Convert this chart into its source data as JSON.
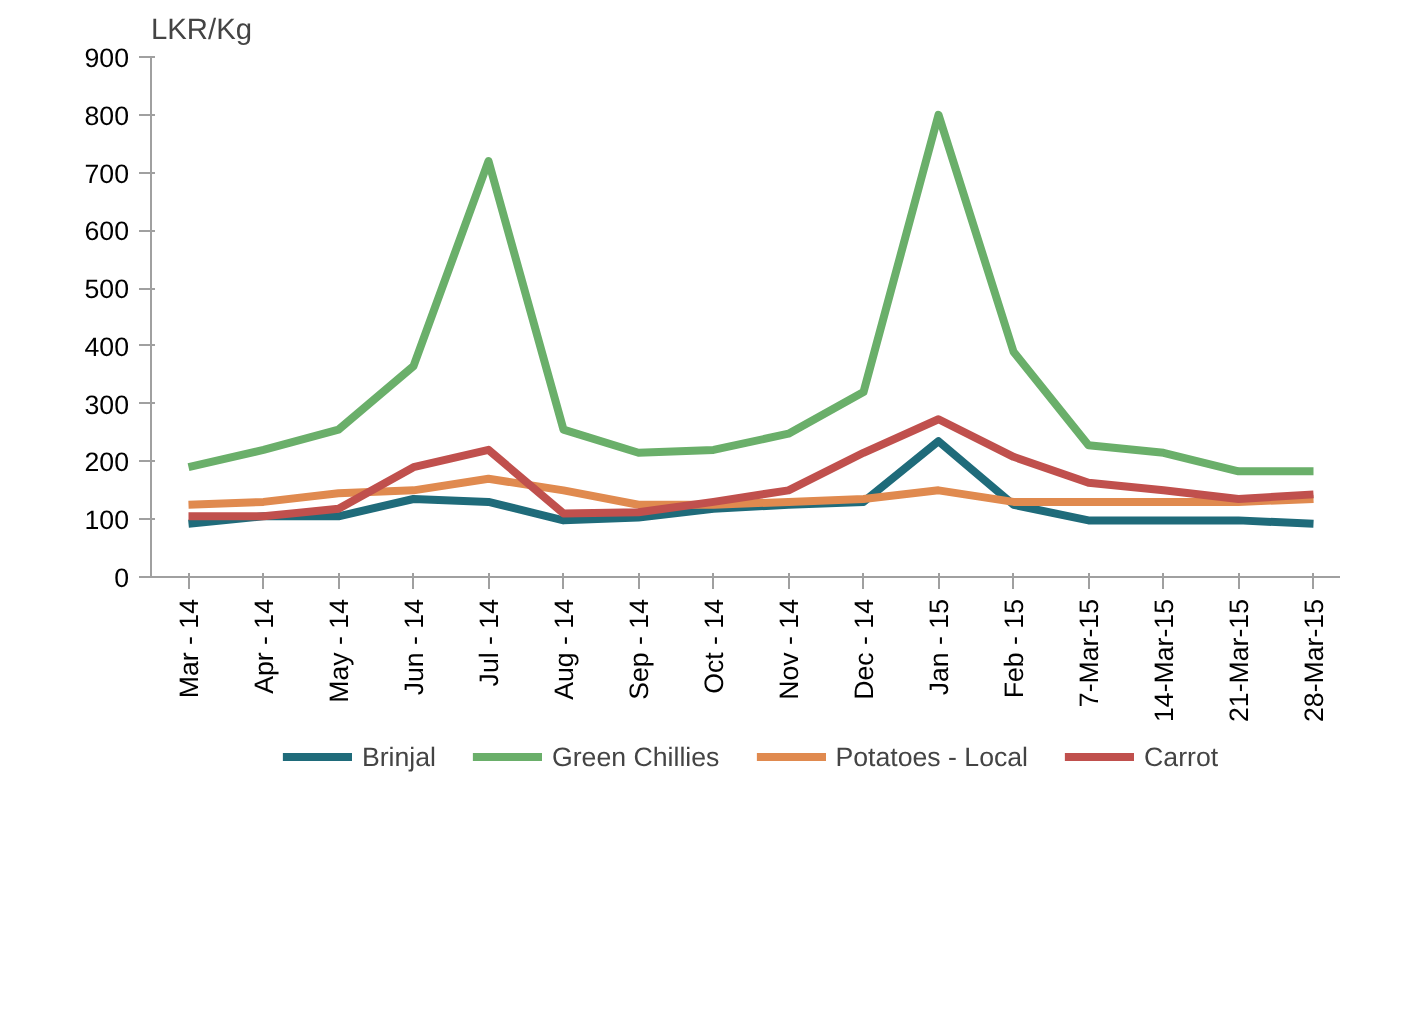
{
  "chart_data": {
    "type": "line",
    "ylabel": "LKR/Kg",
    "categories": [
      "Mar - 14",
      "Apr - 14",
      "May - 14",
      "Jun - 14",
      "Jul - 14",
      "Aug - 14",
      "Sep - 14",
      "Oct - 14",
      "Nov - 14",
      "Dec - 14",
      "Jan - 15",
      "Feb - 15",
      "7-Mar-15",
      "14-Mar-15",
      "21-Mar-15",
      "28-Mar-15"
    ],
    "ylim": [
      0,
      900
    ],
    "yticks": [
      0,
      100,
      200,
      300,
      400,
      500,
      600,
      700,
      800,
      900
    ],
    "grid": false,
    "legend": "bottom",
    "marker": "none",
    "line_style": "solid",
    "series": [
      {
        "name": "Brinjal",
        "color": "#1f6b7a",
        "values": [
          92,
          105,
          105,
          135,
          130,
          98,
          103,
          118,
          125,
          130,
          235,
          125,
          98,
          98,
          98,
          92
        ]
      },
      {
        "name": "Green Chillies",
        "color": "#6aaf6a",
        "values": [
          190,
          220,
          255,
          365,
          720,
          255,
          215,
          220,
          248,
          320,
          800,
          390,
          228,
          215,
          183,
          183
        ]
      },
      {
        "name": "Potatoes - Local",
        "color": "#e08a4f",
        "values": [
          125,
          130,
          145,
          150,
          170,
          150,
          125,
          125,
          130,
          135,
          150,
          130,
          130,
          130,
          130,
          135
        ]
      },
      {
        "name": "Carrot",
        "color": "#c0504d",
        "values": [
          105,
          105,
          118,
          190,
          220,
          110,
          112,
          130,
          150,
          215,
          273,
          208,
          163,
          150,
          135,
          143
        ]
      }
    ]
  }
}
